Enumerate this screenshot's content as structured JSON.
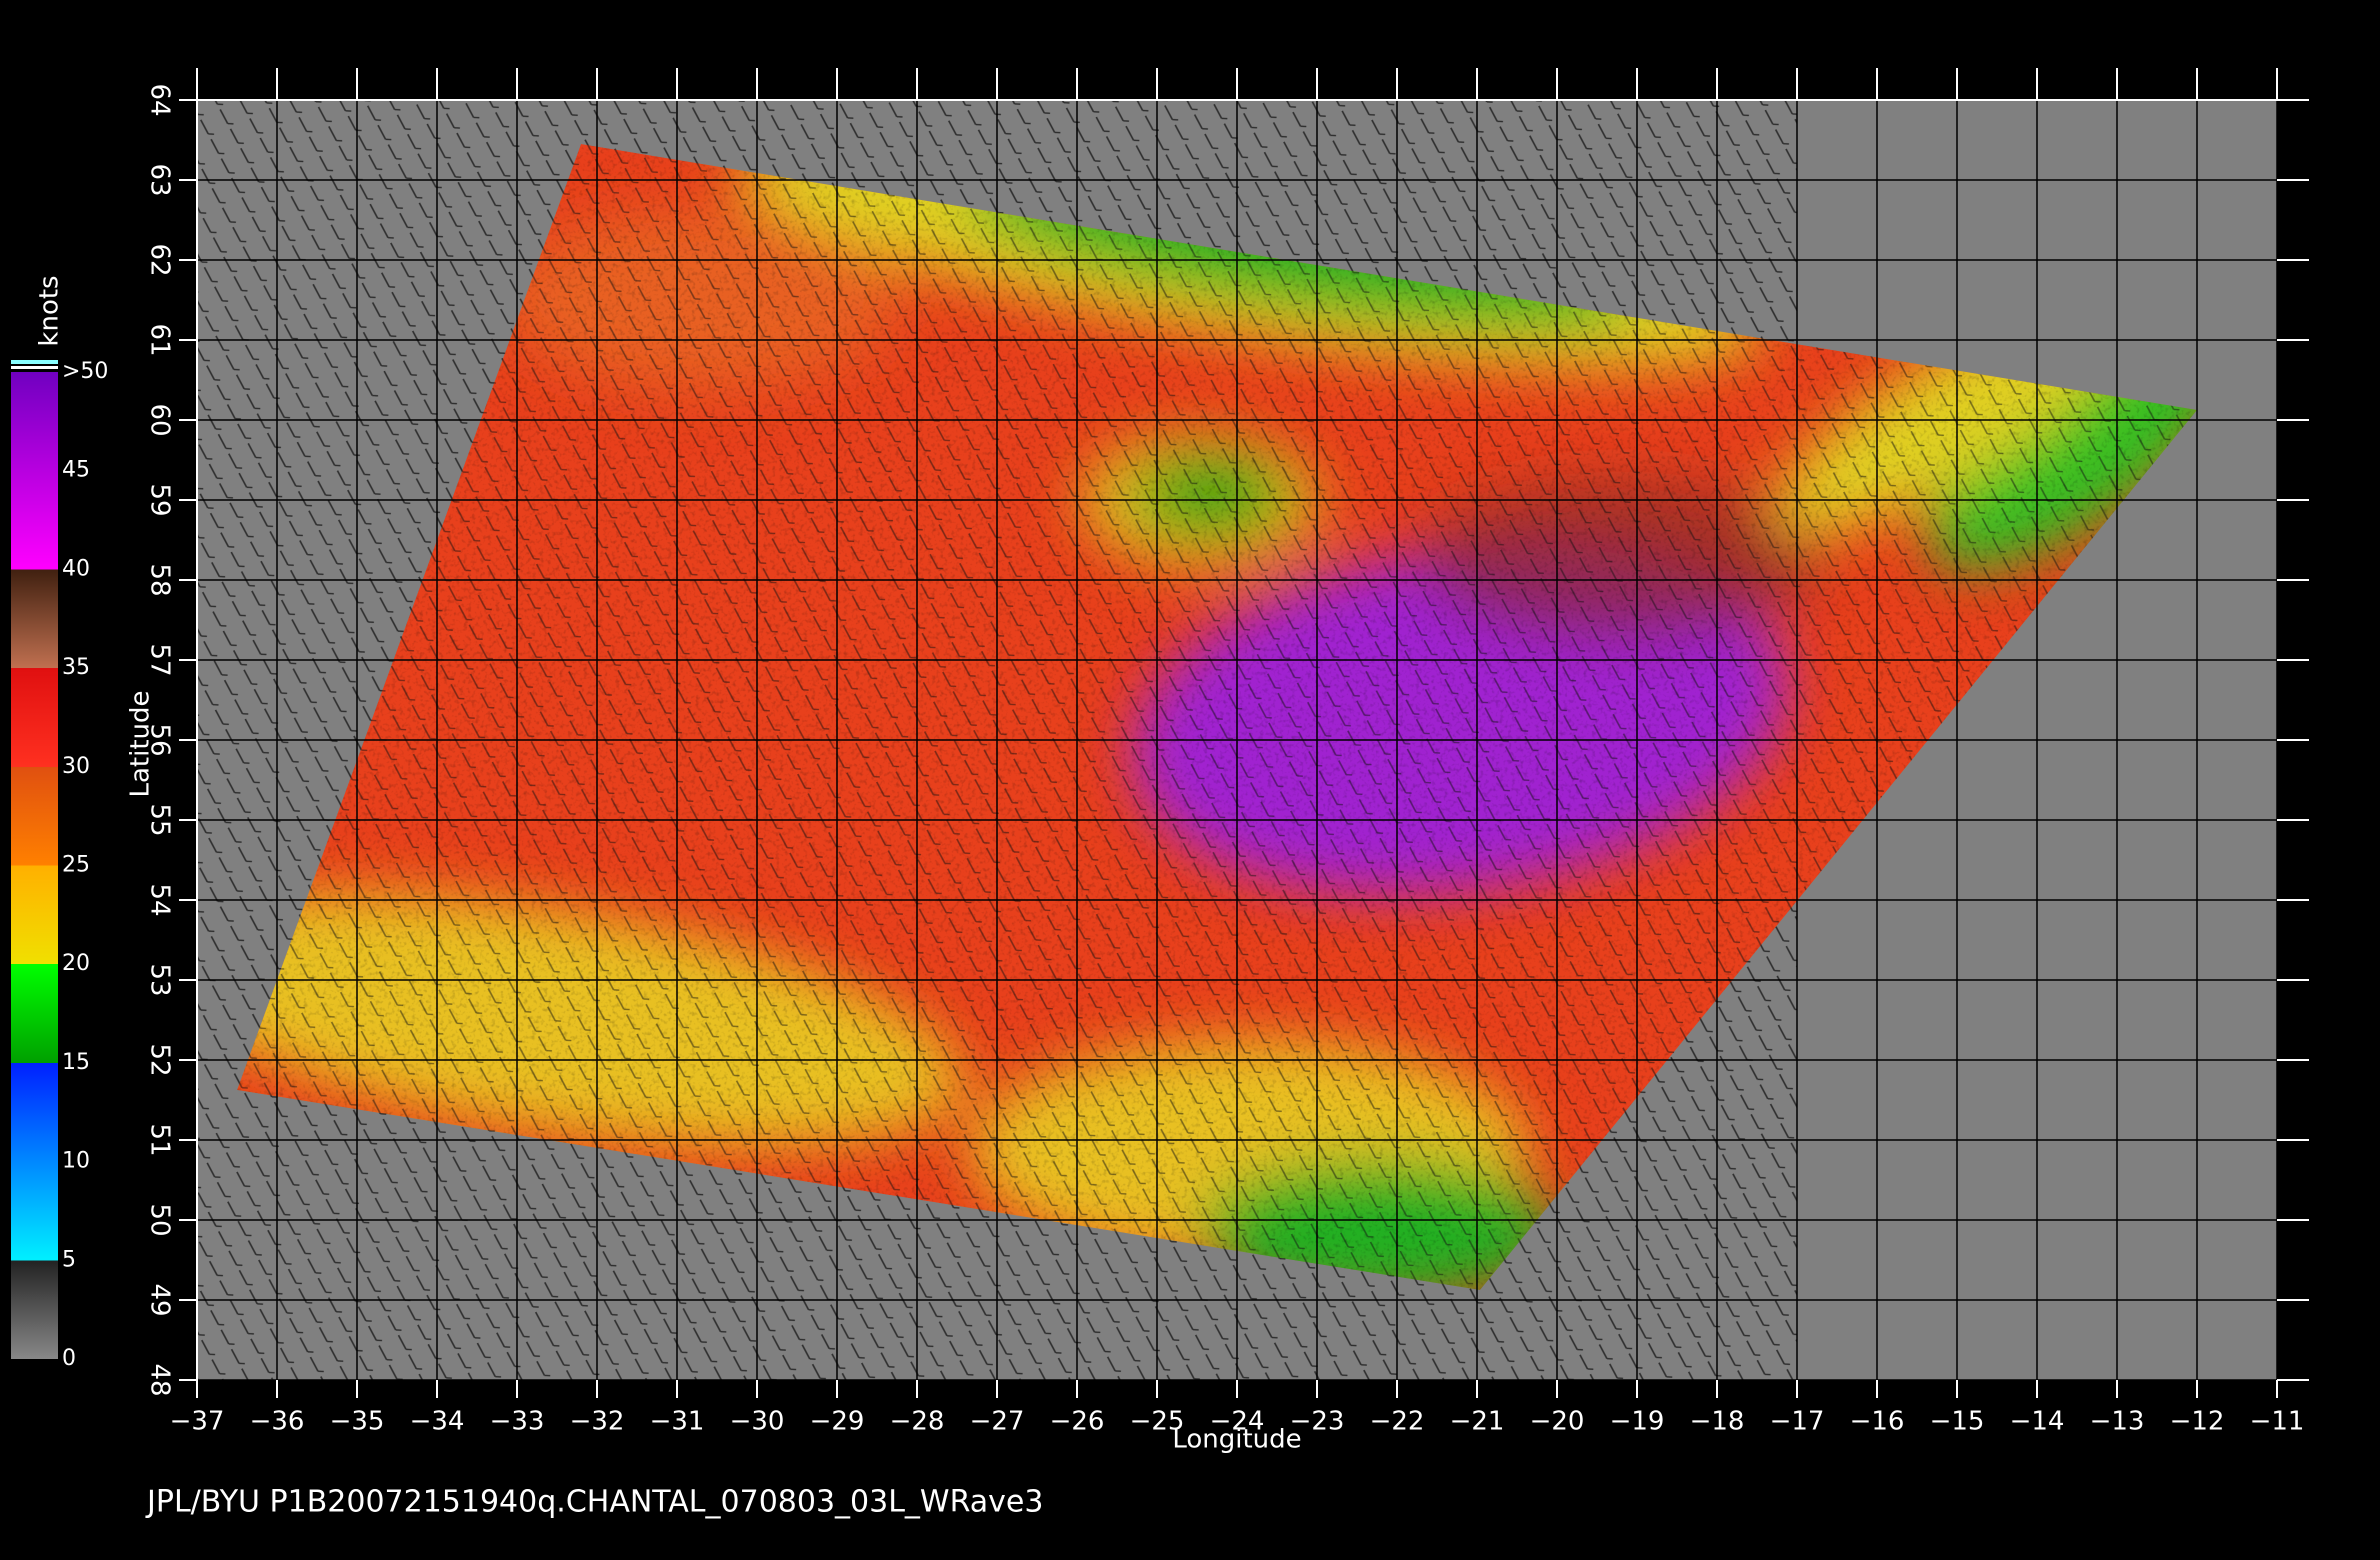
{
  "map": {
    "lon_ticks": [
      -37,
      -36,
      -35,
      -34,
      -33,
      -32,
      -31,
      -30,
      -29,
      -28,
      -27,
      -26,
      -25,
      -24,
      -23,
      -22,
      -21,
      -20,
      -19,
      -18,
      -17,
      -16,
      -15,
      -14,
      -13,
      -12,
      -11
    ],
    "lat_ticks": [
      48,
      49,
      50,
      51,
      52,
      53,
      54,
      55,
      56,
      57,
      58,
      59,
      60,
      61,
      62,
      63,
      64
    ],
    "x_label": "Longitude",
    "y_label": "Latitude"
  },
  "colorbar": {
    "title": "knots",
    "ticks": [
      {
        "value": 50,
        "label": ">50"
      },
      45,
      40,
      35,
      30,
      25,
      20,
      15,
      10,
      5,
      0
    ]
  },
  "footer": "JPL/BYU  P1B20072151940q.CHANTAL_070803_03L_WRave3"
}
